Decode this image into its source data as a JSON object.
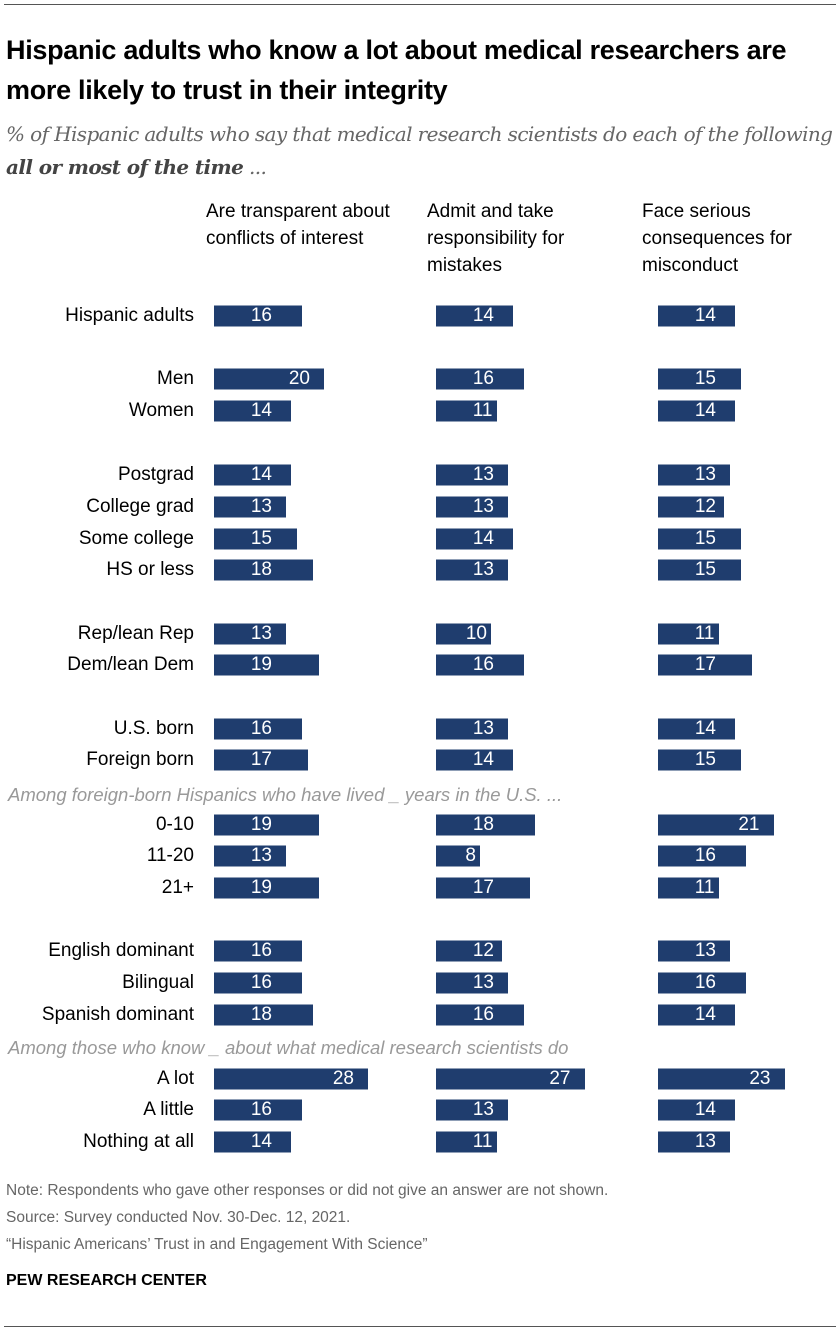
{
  "title": "Hispanic adults who know a lot about medical researchers are more likely to trust in their integrity",
  "subtitle_pre": "% of Hispanic adults who say that medical research scientists do each of the following ",
  "subtitle_bold": "all or most of the time",
  "subtitle_post": " ...",
  "chart_data": {
    "type": "bar",
    "orientation": "horizontal",
    "columns": [
      "Are transparent about conflicts of interest",
      "Admit and take responsibility for mistakes",
      "Face serious consequences for misconduct"
    ],
    "bar_color": "#1f3d6e",
    "rows": [
      {
        "label": "Hispanic adults",
        "values": [
          16,
          14,
          14
        ]
      },
      {
        "label": "Men",
        "values": [
          20,
          16,
          15
        ]
      },
      {
        "label": "Women",
        "values": [
          14,
          11,
          14
        ]
      },
      {
        "label": "Postgrad",
        "values": [
          14,
          13,
          13
        ]
      },
      {
        "label": "College grad",
        "values": [
          13,
          13,
          12
        ]
      },
      {
        "label": "Some college",
        "values": [
          15,
          14,
          15
        ]
      },
      {
        "label": "HS or less",
        "values": [
          18,
          13,
          15
        ]
      },
      {
        "label": "Rep/lean Rep",
        "values": [
          13,
          10,
          11
        ]
      },
      {
        "label": "Dem/lean Dem",
        "values": [
          19,
          16,
          17
        ]
      },
      {
        "label": "U.S. born",
        "values": [
          16,
          13,
          14
        ]
      },
      {
        "label": "Foreign born",
        "values": [
          17,
          14,
          15
        ]
      },
      {
        "label": "0-10",
        "values": [
          19,
          18,
          21
        ]
      },
      {
        "label": "11-20",
        "values": [
          13,
          8,
          16
        ]
      },
      {
        "label": "21+",
        "values": [
          19,
          17,
          11
        ]
      },
      {
        "label": "English dominant",
        "values": [
          16,
          12,
          13
        ]
      },
      {
        "label": "Bilingual",
        "values": [
          16,
          13,
          16
        ]
      },
      {
        "label": "Spanish dominant",
        "values": [
          18,
          16,
          14
        ]
      },
      {
        "label": "A lot",
        "values": [
          28,
          27,
          23
        ]
      },
      {
        "label": "A little",
        "values": [
          16,
          13,
          14
        ]
      },
      {
        "label": "Nothing at all",
        "values": [
          14,
          11,
          13
        ]
      }
    ],
    "section_notes": [
      "Among foreign-born Hispanics who have lived _ years in the U.S. ...",
      "Among those who know _ about what medical research scientists do"
    ]
  },
  "footer": {
    "note": "Note: Respondents who gave other responses or did not give an answer are not shown.",
    "source": "Source: Survey conducted Nov. 30-Dec. 12, 2021.",
    "report": "“Hispanic Americans’ Trust in and Engagement With Science”",
    "logo": "PEW RESEARCH CENTER"
  }
}
